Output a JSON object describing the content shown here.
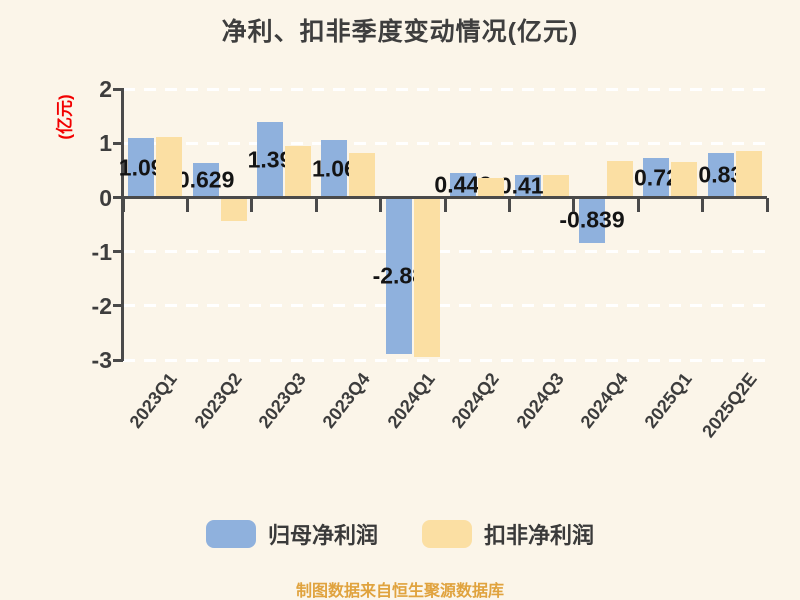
{
  "title": "净利、扣非季度变动情况(亿元)",
  "y_axis": {
    "label": "(亿元)",
    "ticks": [
      "2",
      "1",
      "0",
      "-1",
      "-2",
      "-3"
    ]
  },
  "legend": [
    {
      "label": "归母净利润",
      "color": "#8FB1DD"
    },
    {
      "label": "扣非净利润",
      "color": "#FBDFA3"
    }
  ],
  "footer": "制图数据来自恒生聚源数据库",
  "chart_data": {
    "type": "bar",
    "title": "净利、扣非季度变动情况(亿元)",
    "ylabel": "(亿元)",
    "ylim": [
      -3,
      2
    ],
    "grid": "horizontal dashed gridlines at integer values",
    "legend_position": "bottom",
    "categories": [
      "2023Q1",
      "2023Q2",
      "2023Q3",
      "2023Q4",
      "2024Q1",
      "2024Q2",
      "2024Q3",
      "2024Q4",
      "2025Q1",
      "2025Q2E"
    ],
    "series": [
      {
        "name": "归母净利润",
        "color": "#8FB1DD",
        "values": [
          1.09,
          0.629,
          1.39,
          1.06,
          -2.88,
          0.443,
          0.414,
          -0.839,
          0.72,
          0.83
        ],
        "labels": [
          "1.09",
          "0.629",
          "1.39",
          "1.06",
          "-2.88",
          "0.443",
          "0.414",
          "-0.839",
          "0.72",
          "0.83"
        ]
      },
      {
        "name": "扣非净利润",
        "color": "#FBDFA3",
        "values": [
          1.11,
          -0.44,
          0.95,
          0.83,
          -2.95,
          0.36,
          0.42,
          0.68,
          0.66,
          0.86
        ]
      }
    ]
  }
}
